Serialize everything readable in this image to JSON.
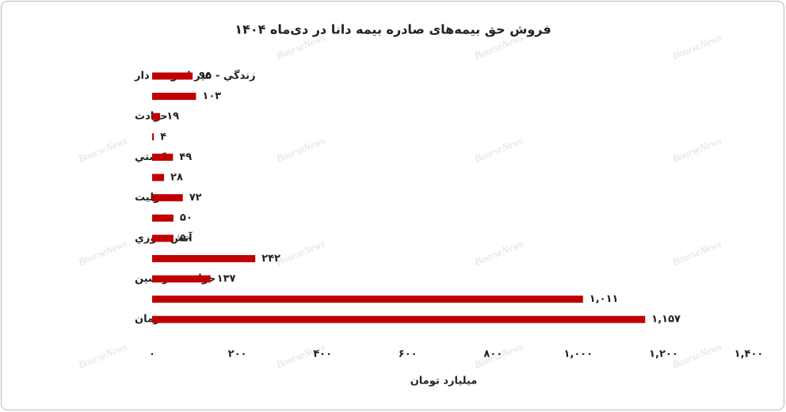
{
  "chart_data": {
    "type": "bar",
    "orientation": "horizontal",
    "title": "فروش حق بیمه‌های صادره بیمه دانا در دی‌ماه ۱۴۰۴",
    "x_label": "میلیارد تومان",
    "watermark": "BourseNews",
    "color": "#c00000",
    "categories": [
      "زندگي - غير اندوخته دار",
      null,
      "حوادث",
      null,
      "كشتي",
      null,
      "مسئوليت",
      null,
      "آتش سوزي",
      null,
      "حوادث سرنشين",
      null,
      "درمان"
    ],
    "values": [
      95,
      103,
      19,
      4,
      49,
      28,
      72,
      50,
      50,
      242,
      137,
      1011,
      1157
    ],
    "value_labels": [
      "۹۵",
      "۱۰۳",
      "۱۹",
      "۴",
      "۴۹",
      "۲۸",
      "۷۲",
      "۵۰",
      "۵۰",
      "۲۴۲",
      "۱۳۷",
      "۱,۰۱۱",
      "۱,۱۵۷"
    ],
    "xlim": [
      0,
      1400
    ],
    "xticks": [
      {
        "value": 0,
        "label": "۰"
      },
      {
        "value": 200,
        "label": "۲۰۰"
      },
      {
        "value": 400,
        "label": "۴۰۰"
      },
      {
        "value": 600,
        "label": "۶۰۰"
      },
      {
        "value": 800,
        "label": "۸۰۰"
      },
      {
        "value": 1000,
        "label": "۱,۰۰۰"
      },
      {
        "value": 1200,
        "label": "۱,۲۰۰"
      },
      {
        "value": 1400,
        "label": "۱,۴۰۰"
      }
    ],
    "grid": false
  }
}
